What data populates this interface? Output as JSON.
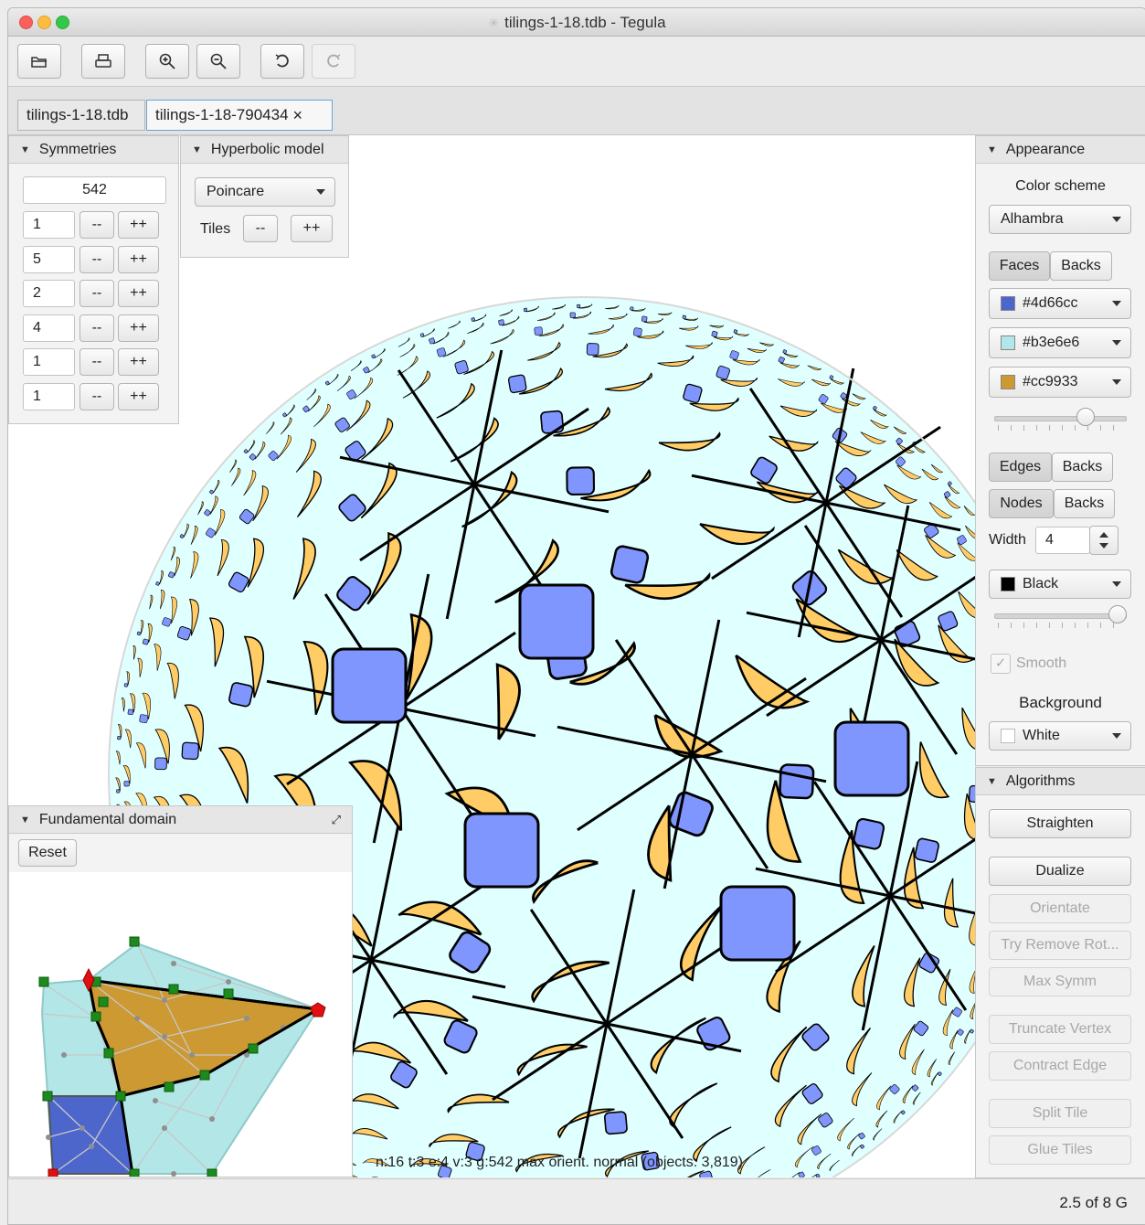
{
  "window": {
    "title": "tilings-1-18.tdb - Tegula"
  },
  "toolbar": {
    "buttons": [
      {
        "name": "open-icon"
      },
      {
        "name": "print-icon"
      },
      {
        "name": "zoom-in-icon"
      },
      {
        "name": "zoom-out-icon"
      },
      {
        "name": "undo-icon"
      },
      {
        "name": "redo-icon"
      }
    ]
  },
  "tabs": [
    {
      "label": "tilings-1-18.tdb"
    },
    {
      "label": "tilings-1-18-790434",
      "close": "×"
    }
  ],
  "symmetries": {
    "header": "Symmetries",
    "group": "542",
    "rows": [
      "1",
      "5",
      "2",
      "4",
      "1",
      "1"
    ],
    "dec": "--",
    "inc": "++"
  },
  "hyperbolic": {
    "header": "Hyperbolic model",
    "model": "Poincare",
    "tiles_label": "Tiles",
    "dec": "--",
    "inc": "++"
  },
  "appearance": {
    "header": "Appearance",
    "color_scheme_label": "Color scheme",
    "color_scheme": "Alhambra",
    "faces": "Faces",
    "backs": "Backs",
    "colors": [
      {
        "label": "#4d66cc",
        "color": "#4d66cc"
      },
      {
        "label": "#b3e6e6",
        "color": "#b3e6e6"
      },
      {
        "label": "#cc9933",
        "color": "#cc9933"
      }
    ],
    "face_slider": 0.72,
    "edges": "Edges",
    "nodes": "Nodes",
    "width_label": "Width",
    "width": "4",
    "edge_color": "Black",
    "edge_swatch": "#000000",
    "edge_slider": 1.0,
    "smooth": "Smooth",
    "background_label": "Background",
    "background": "White",
    "background_swatch": "#ffffff"
  },
  "algorithms": {
    "header": "Algorithms",
    "buttons": [
      {
        "label": "Straighten",
        "enabled": true
      },
      {
        "label": "Dualize",
        "enabled": true
      },
      {
        "label": "Orientate",
        "enabled": false
      },
      {
        "label": "Try Remove Rot...",
        "enabled": false
      },
      {
        "label": "Max Symm",
        "enabled": false
      },
      {
        "label": "Truncate Vertex",
        "enabled": false
      },
      {
        "label": "Contract Edge",
        "enabled": false
      },
      {
        "label": "Split Tile",
        "enabled": false
      },
      {
        "label": "Glue Tiles",
        "enabled": false
      }
    ]
  },
  "fundamental": {
    "header": "Fundamental domain",
    "reset": "Reset"
  },
  "tiling": {
    "colors": {
      "blue": "#8096ff",
      "cyan": "#e0ffff",
      "gold": "#ffcc66",
      "edge": "#000000"
    }
  },
  "status": {
    "info": "n:16 t:3 e:4 v:3 g:542  max orient. normal (objects: 3,819)",
    "memory": "2.5 of 8 G"
  }
}
